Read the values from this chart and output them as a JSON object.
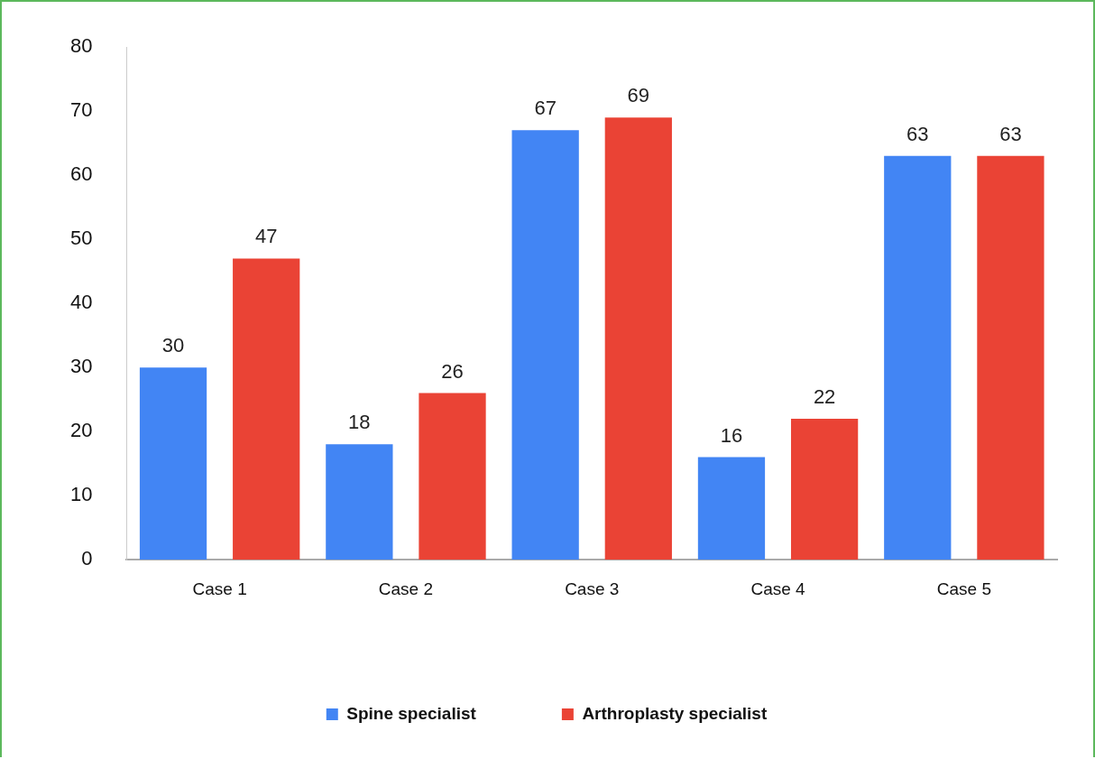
{
  "chart_data": {
    "type": "bar",
    "categories": [
      "Case 1",
      "Case 2",
      "Case 3",
      "Case 4",
      "Case 5"
    ],
    "series": [
      {
        "name": "Spine specialist",
        "color": "#4285f4",
        "values": [
          30,
          18,
          67,
          16,
          63
        ]
      },
      {
        "name": "Arthroplasty specialist",
        "color": "#ea4335",
        "values": [
          47,
          26,
          69,
          22,
          63
        ]
      }
    ],
    "ylim": [
      0,
      80
    ],
    "yticks": [
      0,
      10,
      20,
      30,
      40,
      50,
      60,
      70,
      80
    ],
    "grid": false,
    "legend": "bottom",
    "data_labels": true
  }
}
